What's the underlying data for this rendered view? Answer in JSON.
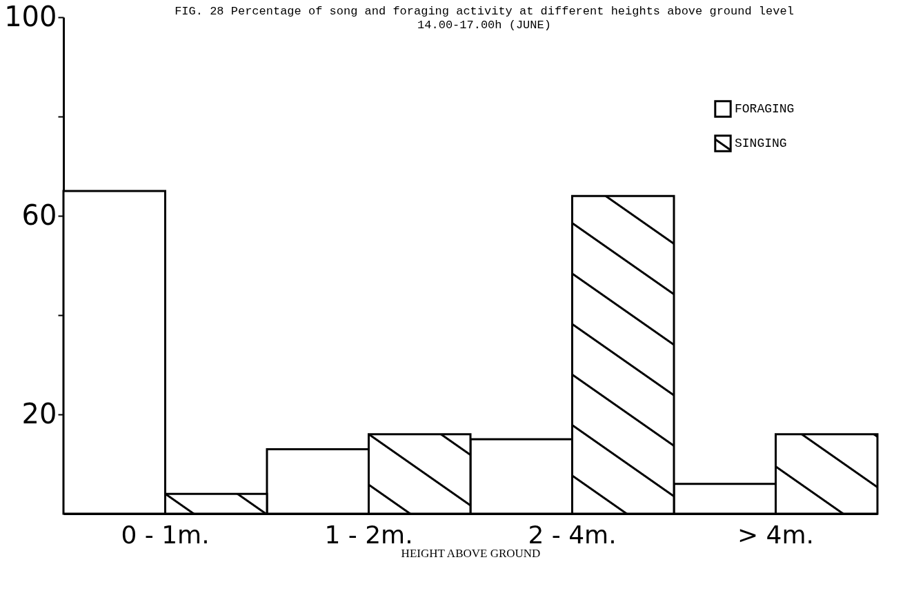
{
  "chart_data": {
    "type": "bar",
    "title": "FIG. 28 Percentage of song and foraging activity at different heights above ground level",
    "subtitle": "14.00-17.00h (JUNE)",
    "xlabel": "HEIGHT ABOVE GROUND",
    "categories": [
      "0 - 1m.",
      "1 - 2m.",
      "2 - 4m.",
      "> 4m."
    ],
    "series": [
      {
        "name": "FORAGING",
        "color": "#ffffff",
        "values": [
          65,
          13,
          15,
          6
        ]
      },
      {
        "name": "SINGING",
        "color": "#000000",
        "values": [
          4,
          16,
          64,
          16
        ]
      }
    ],
    "ylim": [
      0,
      100
    ],
    "yticks": [
      20,
      {
        "value": 40,
        "label": null
      },
      60,
      {
        "value": 80,
        "label": null
      },
      100
    ],
    "grid": false,
    "legend": "top right"
  }
}
